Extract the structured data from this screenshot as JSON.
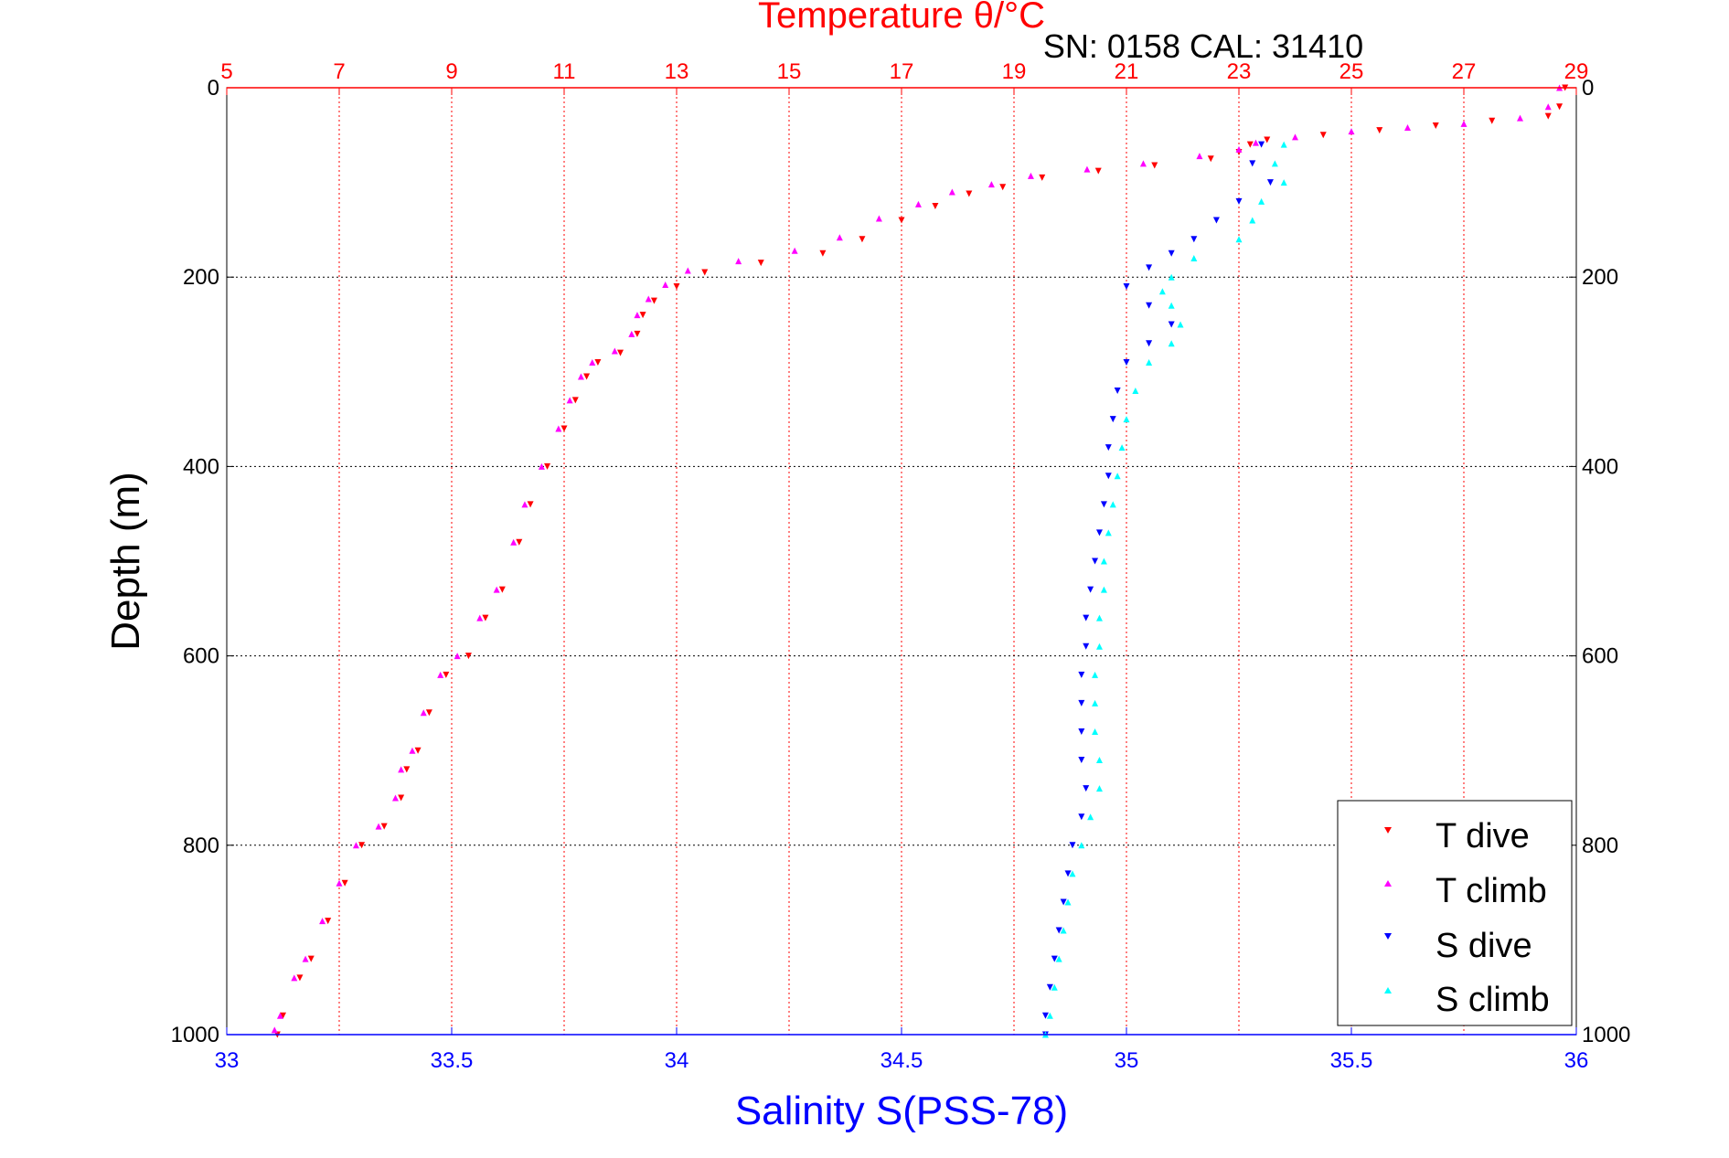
{
  "chart_data": {
    "type": "scatter",
    "title": "Temperature θ/°C",
    "subtitle": "SN: 0158  CAL: 31410",
    "ylabel": "Depth (m)",
    "xlabel": "Salinity S(PSS-78)",
    "x_top": {
      "label": "Temperature θ/°C",
      "range": [
        5,
        29
      ],
      "ticks": [
        "5",
        "7",
        "9",
        "11",
        "13",
        "15",
        "17",
        "19",
        "21",
        "23",
        "25",
        "27",
        "29"
      ]
    },
    "x_bottom": {
      "label": "Salinity S(PSS-78)",
      "range": [
        33,
        36
      ],
      "ticks": [
        "33",
        "33.5",
        "34",
        "34.5",
        "35",
        "35.5",
        "36"
      ]
    },
    "y": {
      "label": "Depth (m)",
      "range": [
        0,
        1000
      ],
      "inverted": true,
      "ticks": [
        "0",
        "200",
        "400",
        "600",
        "800",
        "1000"
      ]
    },
    "grid": true,
    "legend_position": "bottom-right",
    "colors": {
      "t_dive": "#ff0000",
      "t_climb": "#ff00ff",
      "s_dive": "#0000ff",
      "s_climb": "#00ffff",
      "top_axis": "#ff0000",
      "bottom_axis": "#0000ff"
    },
    "series": [
      {
        "name": "T dive",
        "axis": "temperature",
        "marker": "triangle-down",
        "points": [
          [
            28.8,
            0
          ],
          [
            28.7,
            20
          ],
          [
            28.5,
            30
          ],
          [
            27.5,
            35
          ],
          [
            26.5,
            40
          ],
          [
            25.5,
            45
          ],
          [
            24.5,
            50
          ],
          [
            23.5,
            55
          ],
          [
            23.2,
            60
          ],
          [
            23.0,
            68
          ],
          [
            22.5,
            75
          ],
          [
            21.5,
            82
          ],
          [
            20.5,
            88
          ],
          [
            19.5,
            95
          ],
          [
            18.8,
            105
          ],
          [
            18.2,
            112
          ],
          [
            17.6,
            125
          ],
          [
            17.0,
            140
          ],
          [
            16.3,
            160
          ],
          [
            15.6,
            175
          ],
          [
            14.5,
            185
          ],
          [
            13.5,
            195
          ],
          [
            13.0,
            210
          ],
          [
            12.6,
            225
          ],
          [
            12.4,
            240
          ],
          [
            12.3,
            260
          ],
          [
            12.0,
            280
          ],
          [
            11.6,
            290
          ],
          [
            11.4,
            305
          ],
          [
            11.2,
            330
          ],
          [
            11.0,
            360
          ],
          [
            10.7,
            400
          ],
          [
            10.4,
            440
          ],
          [
            10.2,
            480
          ],
          [
            9.9,
            530
          ],
          [
            9.6,
            560
          ],
          [
            9.3,
            600
          ],
          [
            8.9,
            620
          ],
          [
            8.6,
            660
          ],
          [
            8.4,
            700
          ],
          [
            8.2,
            720
          ],
          [
            8.1,
            750
          ],
          [
            7.8,
            780
          ],
          [
            7.4,
            800
          ],
          [
            7.1,
            840
          ],
          [
            6.8,
            880
          ],
          [
            6.5,
            920
          ],
          [
            6.3,
            940
          ],
          [
            6.0,
            980
          ],
          [
            5.9,
            1000
          ]
        ]
      },
      {
        "name": "T climb",
        "axis": "temperature",
        "marker": "triangle-up",
        "points": [
          [
            28.7,
            0
          ],
          [
            28.5,
            20
          ],
          [
            28.0,
            32
          ],
          [
            27.0,
            38
          ],
          [
            26.0,
            42
          ],
          [
            25.0,
            46
          ],
          [
            24.0,
            52
          ],
          [
            23.3,
            58
          ],
          [
            23.0,
            65
          ],
          [
            22.3,
            72
          ],
          [
            21.3,
            80
          ],
          [
            20.3,
            86
          ],
          [
            19.3,
            93
          ],
          [
            18.6,
            102
          ],
          [
            17.9,
            110
          ],
          [
            17.3,
            123
          ],
          [
            16.6,
            138
          ],
          [
            15.9,
            158
          ],
          [
            15.1,
            172
          ],
          [
            14.1,
            183
          ],
          [
            13.2,
            193
          ],
          [
            12.8,
            208
          ],
          [
            12.5,
            223
          ],
          [
            12.3,
            240
          ],
          [
            12.2,
            260
          ],
          [
            11.9,
            278
          ],
          [
            11.5,
            290
          ],
          [
            11.3,
            305
          ],
          [
            11.1,
            330
          ],
          [
            10.9,
            360
          ],
          [
            10.6,
            400
          ],
          [
            10.3,
            440
          ],
          [
            10.1,
            480
          ],
          [
            9.8,
            530
          ],
          [
            9.5,
            560
          ],
          [
            9.1,
            600
          ],
          [
            8.8,
            620
          ],
          [
            8.5,
            660
          ],
          [
            8.3,
            700
          ],
          [
            8.1,
            720
          ],
          [
            8.0,
            750
          ],
          [
            7.7,
            780
          ],
          [
            7.3,
            800
          ],
          [
            7.0,
            840
          ],
          [
            6.7,
            880
          ],
          [
            6.4,
            920
          ],
          [
            6.2,
            940
          ],
          [
            5.95,
            980
          ],
          [
            5.85,
            995
          ]
        ]
      },
      {
        "name": "S dive",
        "axis": "salinity",
        "marker": "triangle-down",
        "points": [
          [
            35.3,
            60
          ],
          [
            35.28,
            80
          ],
          [
            35.32,
            100
          ],
          [
            35.25,
            120
          ],
          [
            35.2,
            140
          ],
          [
            35.15,
            160
          ],
          [
            35.1,
            175
          ],
          [
            35.05,
            190
          ],
          [
            35.0,
            210
          ],
          [
            35.05,
            230
          ],
          [
            35.1,
            250
          ],
          [
            35.05,
            270
          ],
          [
            35.0,
            290
          ],
          [
            34.98,
            320
          ],
          [
            34.97,
            350
          ],
          [
            34.96,
            380
          ],
          [
            34.96,
            410
          ],
          [
            34.95,
            440
          ],
          [
            34.94,
            470
          ],
          [
            34.93,
            500
          ],
          [
            34.92,
            530
          ],
          [
            34.91,
            560
          ],
          [
            34.91,
            590
          ],
          [
            34.9,
            620
          ],
          [
            34.9,
            650
          ],
          [
            34.9,
            680
          ],
          [
            34.9,
            710
          ],
          [
            34.91,
            740
          ],
          [
            34.9,
            770
          ],
          [
            34.88,
            800
          ],
          [
            34.87,
            830
          ],
          [
            34.86,
            860
          ],
          [
            34.85,
            890
          ],
          [
            34.84,
            920
          ],
          [
            34.83,
            950
          ],
          [
            34.82,
            980
          ],
          [
            34.82,
            1000
          ]
        ]
      },
      {
        "name": "S climb",
        "axis": "salinity",
        "marker": "triangle-up",
        "points": [
          [
            35.35,
            60
          ],
          [
            35.33,
            80
          ],
          [
            35.35,
            100
          ],
          [
            35.3,
            120
          ],
          [
            35.28,
            140
          ],
          [
            35.25,
            160
          ],
          [
            35.15,
            180
          ],
          [
            35.1,
            200
          ],
          [
            35.08,
            215
          ],
          [
            35.1,
            230
          ],
          [
            35.12,
            250
          ],
          [
            35.1,
            270
          ],
          [
            35.05,
            290
          ],
          [
            35.02,
            320
          ],
          [
            35.0,
            350
          ],
          [
            34.99,
            380
          ],
          [
            34.98,
            410
          ],
          [
            34.97,
            440
          ],
          [
            34.96,
            470
          ],
          [
            34.95,
            500
          ],
          [
            34.95,
            530
          ],
          [
            34.94,
            560
          ],
          [
            34.94,
            590
          ],
          [
            34.93,
            620
          ],
          [
            34.93,
            650
          ],
          [
            34.93,
            680
          ],
          [
            34.94,
            710
          ],
          [
            34.94,
            740
          ],
          [
            34.92,
            770
          ],
          [
            34.9,
            800
          ],
          [
            34.88,
            830
          ],
          [
            34.87,
            860
          ],
          [
            34.86,
            890
          ],
          [
            34.85,
            920
          ],
          [
            34.84,
            950
          ],
          [
            34.83,
            980
          ],
          [
            34.82,
            1000
          ]
        ]
      }
    ]
  }
}
